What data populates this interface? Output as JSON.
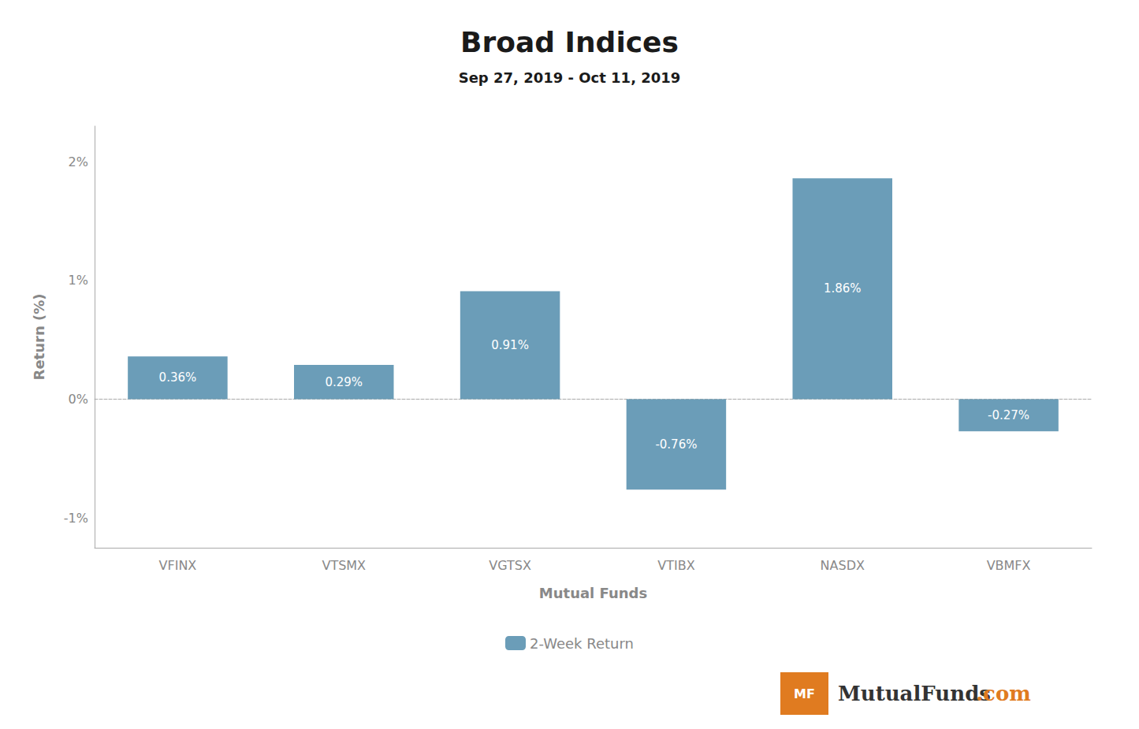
{
  "chart_data": {
    "type": "bar",
    "title": "Broad Indices",
    "subtitle": "Sep 27, 2019 - Oct 11, 2019",
    "categories": [
      "VFINX",
      "VTSMX",
      "VGTSX",
      "VTIBX",
      "NASDX",
      "VBMFX"
    ],
    "series": [
      {
        "name": "2-Week Return",
        "color": "#6b9db8",
        "values": [
          0.36,
          0.29,
          0.91,
          -0.76,
          1.86,
          -0.27
        ],
        "value_labels": [
          "0.36%",
          "0.29%",
          "0.91%",
          "-0.76%",
          "1.86%",
          "-0.27%"
        ]
      }
    ],
    "xlabel": "Mutual Funds",
    "ylabel": "Return (%)",
    "ylim": [
      -1.25,
      2.3
    ],
    "yticks": [
      {
        "value": -1.0,
        "label": "-1%"
      },
      {
        "value": 0.0,
        "label": "0%"
      },
      {
        "value": 1.0,
        "label": "1%"
      },
      {
        "value": 2.0,
        "label": "2%"
      }
    ],
    "grid": false,
    "legend": "bottom",
    "data_labels": true,
    "annotations": [
      "MF",
      "MutualFunds",
      ".com"
    ]
  }
}
